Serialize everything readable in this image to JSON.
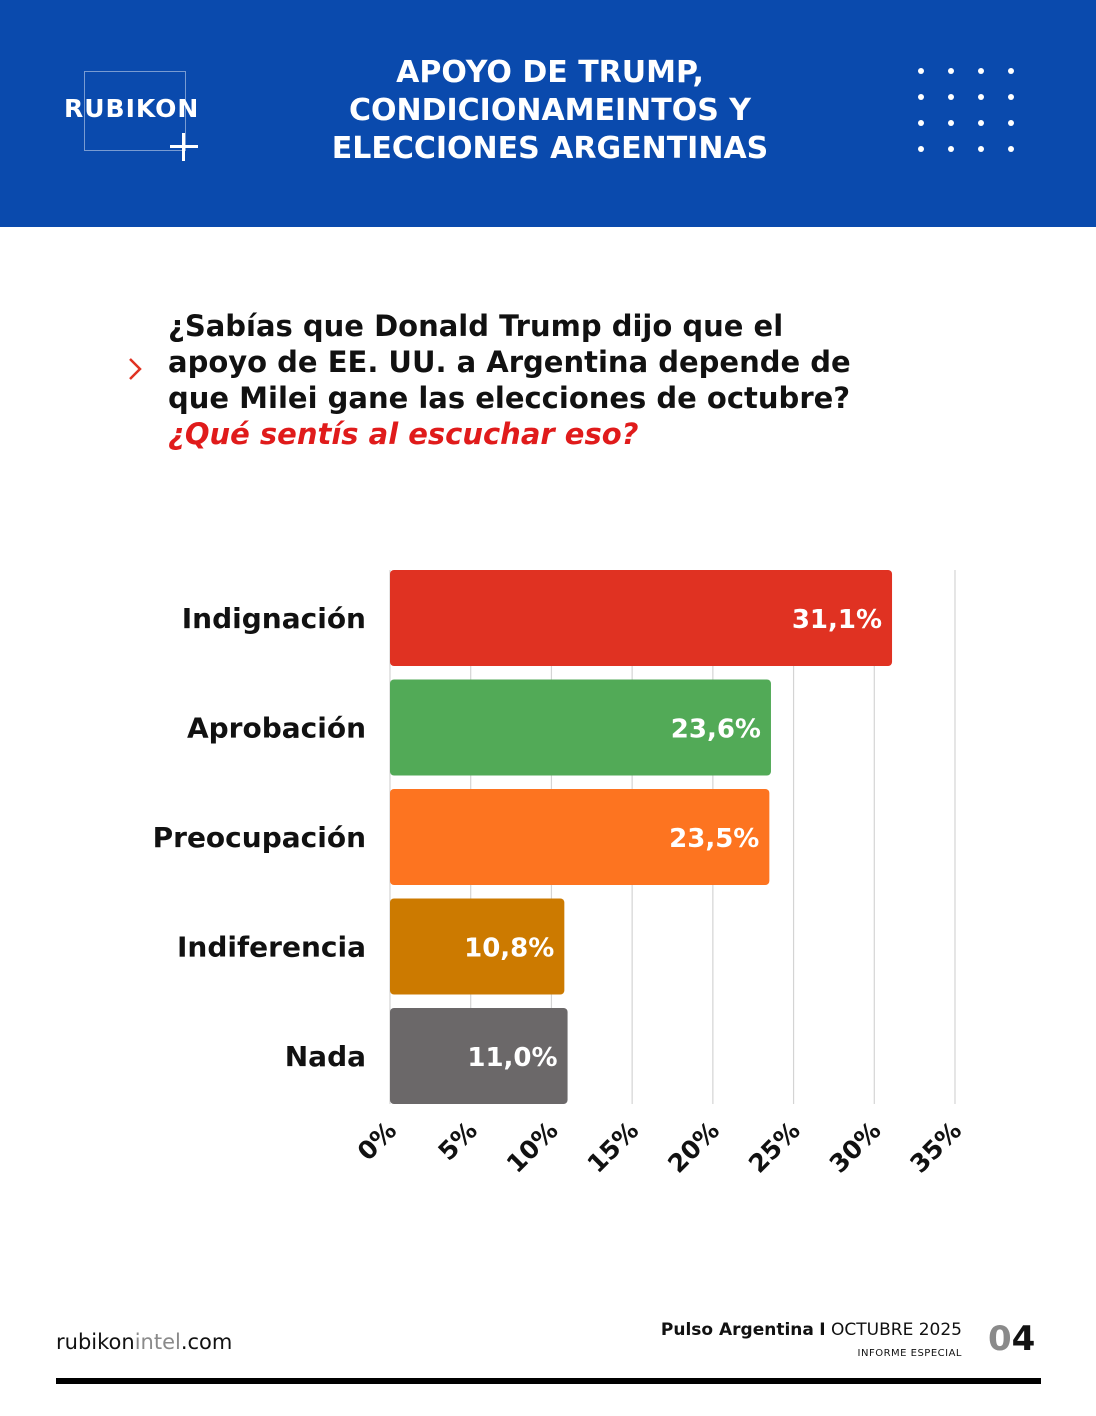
{
  "header": {
    "logo_text": "RUBIKON",
    "title_lines": [
      "APOYO DE TRUMP,",
      "CONDICIONAMEINTOS Y",
      "ELECCIONES ARGENTINAS"
    ],
    "background_color": "#0a4aad"
  },
  "question": {
    "lines": [
      "¿Sabías que Donald Trump dijo que el",
      "apoyo de EE. UU. a Argentina depende de",
      "que Milei gane las elecciones de octubre?"
    ],
    "highlight": "¿Qué sentís al escuchar eso?",
    "highlight_color": "#e01b1b"
  },
  "chart_data": {
    "type": "bar",
    "orientation": "horizontal",
    "categories": [
      "Indignación",
      "Aprobación",
      "Preocupación",
      "Indiferencia",
      "Nada"
    ],
    "values": [
      31.1,
      23.6,
      23.5,
      10.8,
      11.0
    ],
    "value_labels": [
      "31,1%",
      "23,6%",
      "23,5%",
      "10,8%",
      "11,0%"
    ],
    "colors": [
      "#e03222",
      "#52aa57",
      "#fd7420",
      "#cc7a00",
      "#6b6869"
    ],
    "xlim": [
      0,
      35
    ],
    "xticks": [
      0,
      5,
      10,
      15,
      20,
      25,
      30,
      35
    ],
    "xtick_labels": [
      "0%",
      "5%",
      "10%",
      "15%",
      "20%",
      "25%",
      "30%",
      "35%"
    ],
    "grid": true
  },
  "footer": {
    "url_parts": [
      "rubikon",
      "intel",
      ".com"
    ],
    "report_bold": "Pulso Argentina",
    "report_separator": "I",
    "report_date": "OCTUBRE 2025",
    "report_type": "INFORME ESPECIAL",
    "page_number_parts": [
      "0",
      "4"
    ]
  }
}
